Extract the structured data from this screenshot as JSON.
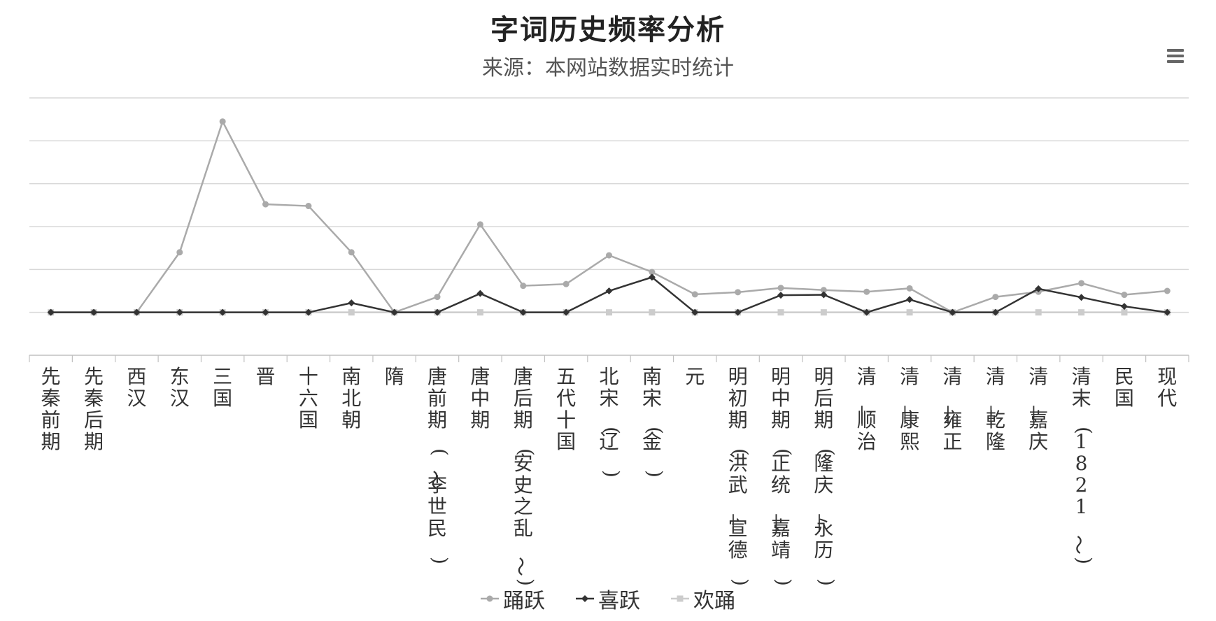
{
  "header": {
    "title": "字词历史频率分析",
    "subtitle": "来源：本网站数据实时统计"
  },
  "menu": {
    "icon": "hamburger-menu-icon"
  },
  "chart_data": {
    "type": "line",
    "title": "字词历史频率分析",
    "subtitle": "来源：本网站数据实时统计",
    "xlabel": "",
    "ylabel": "",
    "grid": true,
    "legend_position": "bottom",
    "ylim": [
      -1,
      5
    ],
    "categories": [
      "先秦前期",
      "先秦后期",
      "西汉",
      "东汉",
      "三国",
      "晋",
      "十六国",
      "南北朝",
      "隋",
      "唐前期(～李世民)",
      "唐中期",
      "唐后期(安史之乱～)",
      "五代十国",
      "北宋(辽)",
      "南宋(金)",
      "元",
      "明初期(洪武—宣德)",
      "明中期(正统—嘉靖)",
      "明后期(隆庆—永历)",
      "清—顺治",
      "清—康熙",
      "清—雍正",
      "清—乾隆",
      "清—嘉庆",
      "清末(1821～)",
      "民国",
      "现代"
    ],
    "series": [
      {
        "name": "踊跃",
        "color": "#aaaaaa",
        "marker": "circle",
        "values": [
          0,
          0,
          0,
          1.4,
          4.45,
          2.52,
          2.48,
          1.4,
          0,
          0.36,
          2.05,
          0.62,
          0.66,
          1.33,
          0.94,
          0.42,
          0.47,
          0.57,
          0.52,
          0.48,
          0.56,
          0,
          0.36,
          0.48,
          0.68,
          0.41,
          0.5
        ]
      },
      {
        "name": "喜跃",
        "color": "#333333",
        "marker": "diamond",
        "values": [
          0,
          0,
          0,
          0,
          0,
          0,
          0,
          0.22,
          0,
          0,
          0.44,
          0,
          0,
          0.5,
          0.82,
          0,
          0,
          0.4,
          0.41,
          0,
          0.3,
          0,
          0,
          0.55,
          0.35,
          0.14,
          0
        ]
      },
      {
        "name": "欢踊",
        "color": "#cccccc",
        "marker": "square",
        "values": [
          0,
          0,
          0,
          0,
          0,
          0,
          0,
          0,
          0,
          0,
          0,
          0,
          0,
          0,
          0,
          0,
          0,
          0,
          0,
          0,
          0,
          0,
          0,
          0,
          0,
          0,
          0
        ]
      }
    ]
  }
}
